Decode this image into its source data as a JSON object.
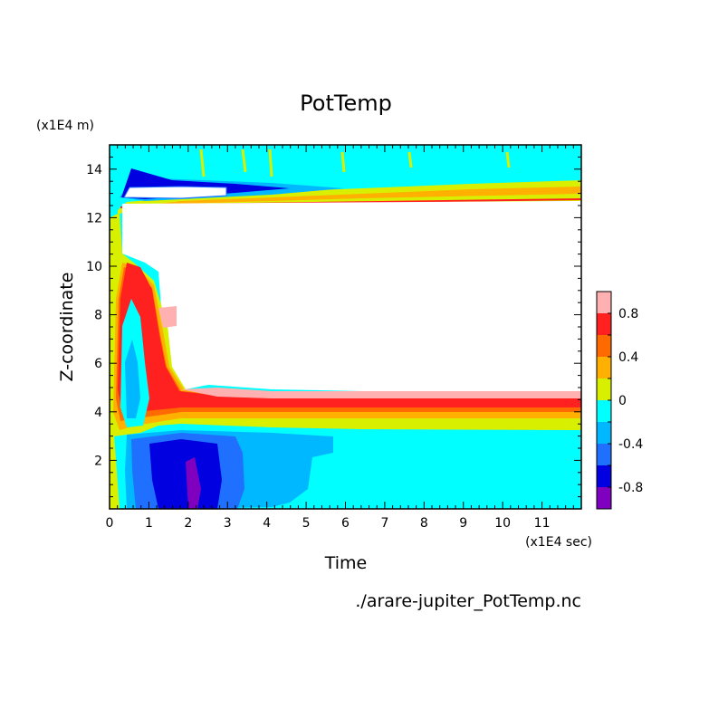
{
  "chart_data": {
    "type": "heatmap",
    "title": "PotTemp",
    "xlabel": "Time",
    "ylabel": "Z-coordinate",
    "x_unit": "(x1E4 sec)",
    "y_unit": "(x1E4 m)",
    "xlim": [
      0,
      12
    ],
    "ylim": [
      0,
      15
    ],
    "x_ticks": [
      0,
      1,
      2,
      3,
      4,
      5,
      6,
      7,
      8,
      9,
      10,
      11
    ],
    "y_ticks": [
      2,
      4,
      6,
      8,
      10,
      12,
      14
    ],
    "filename": "./arare-jupiter_PotTemp.nc",
    "colorbar": {
      "tick_labels": [
        "0.8",
        "0.4",
        "0",
        "-0.4",
        "-0.8"
      ],
      "tick_values": [
        0.8,
        0.4,
        0,
        -0.4,
        -0.8
      ],
      "range": [
        -1.0,
        1.0
      ],
      "levels": [
        {
          "min": 0.8,
          "max": 1.0,
          "color": "#ffb0b0"
        },
        {
          "min": 0.6,
          "max": 0.8,
          "color": "#ff2020"
        },
        {
          "min": 0.4,
          "max": 0.6,
          "color": "#ff6a00"
        },
        {
          "min": 0.2,
          "max": 0.4,
          "color": "#ffb000"
        },
        {
          "min": 0.0,
          "max": 0.2,
          "color": "#d8f000"
        },
        {
          "min": -0.2,
          "max": 0.0,
          "color": "#00ffff"
        },
        {
          "min": -0.4,
          "max": -0.2,
          "color": "#00b8ff"
        },
        {
          "min": -0.6,
          "max": -0.4,
          "color": "#2070ff"
        },
        {
          "min": -0.8,
          "max": -0.6,
          "color": "#0000e0"
        },
        {
          "min": -1.0,
          "max": -0.8,
          "color": "#8000c0"
        }
      ]
    }
  }
}
